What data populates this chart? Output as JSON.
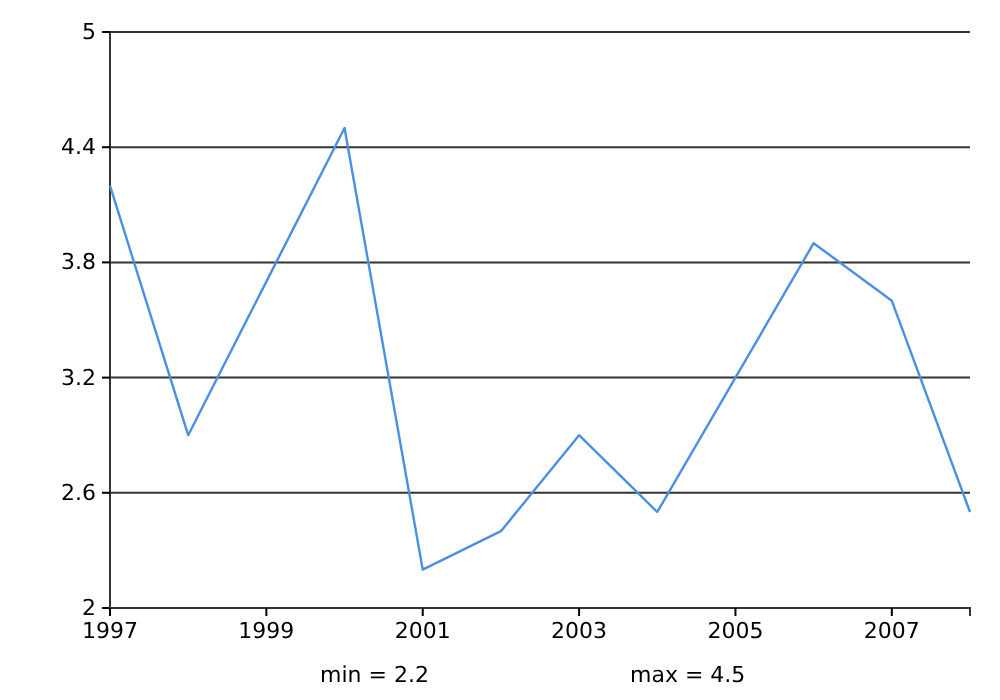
{
  "chart_data": {
    "type": "line",
    "x": [
      1997,
      1998,
      1999,
      2000,
      2001,
      2002,
      2003,
      2004,
      2005,
      2006,
      2007,
      2008
    ],
    "series": [
      {
        "color": "#4a90e2",
        "values": [
          4.2,
          2.9,
          3.7,
          4.5,
          2.2,
          2.4,
          2.9,
          2.5,
          3.2,
          3.9,
          3.6,
          2.5
        ]
      }
    ],
    "xlim": [
      1997,
      2008
    ],
    "xticks": [
      1997,
      1999,
      2001,
      2003,
      2005,
      2007
    ],
    "ylim": [
      2,
      5
    ],
    "yticks": [
      2,
      2.6,
      3.2,
      3.8,
      4.4,
      5
    ],
    "grid": "y",
    "annotations": [
      "min = 2.2",
      "max = 4.5"
    ]
  }
}
